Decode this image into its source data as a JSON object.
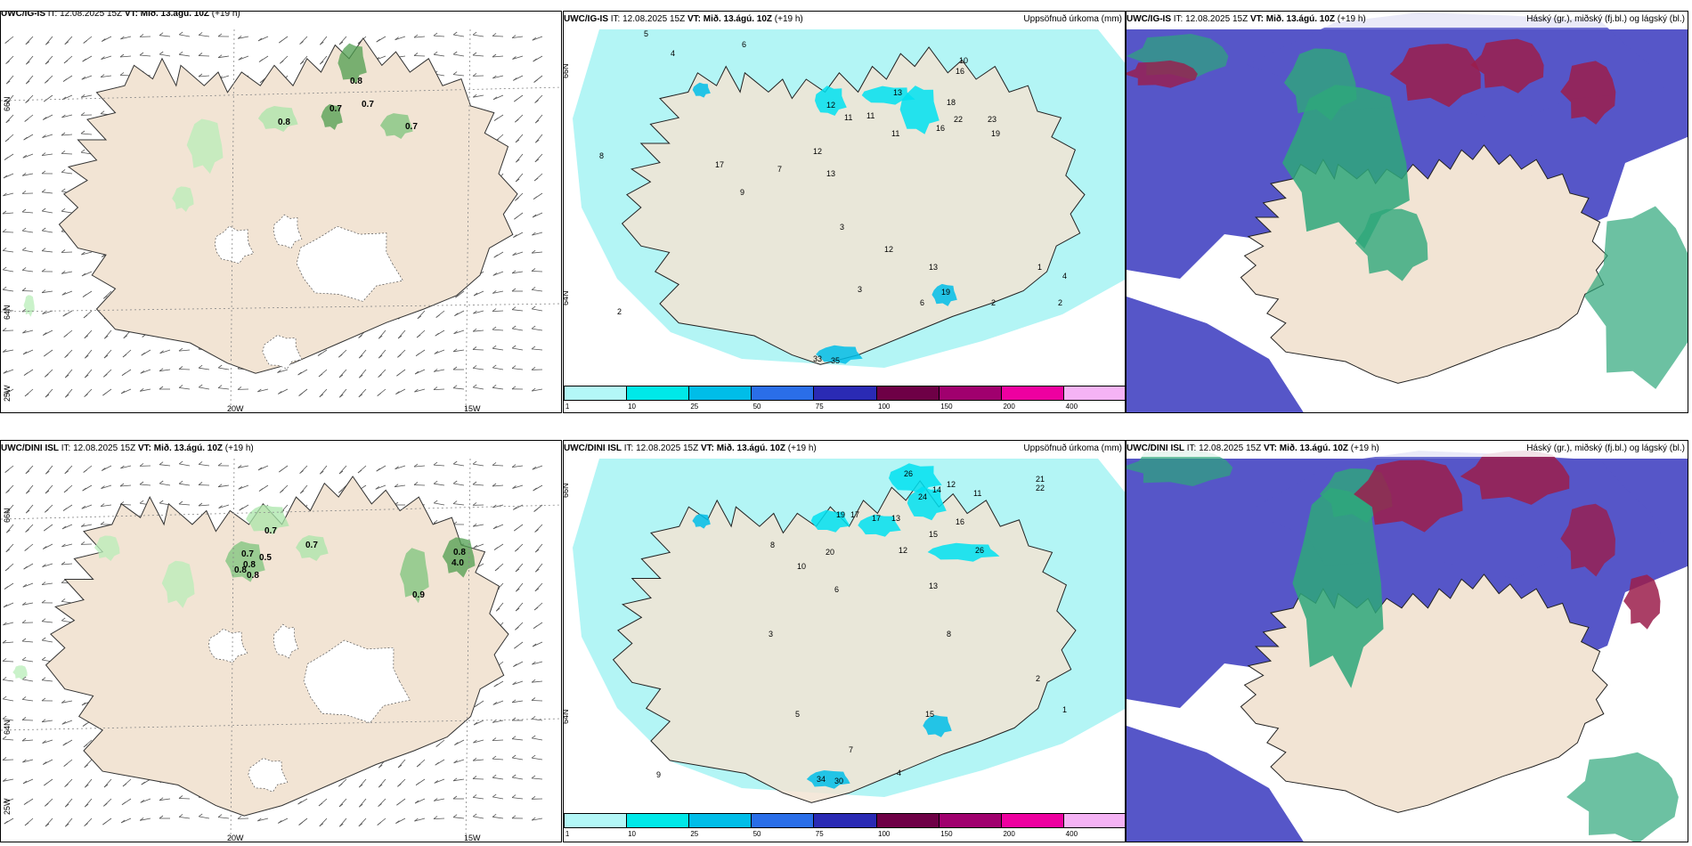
{
  "panels": {
    "top_left": {
      "source": "UWC/IG-IS",
      "it": "IT: 12.08.2025 15Z",
      "vt_label": "VT:",
      "vt": "Mið. 13.ágú. 10Z",
      "lead": "(+19 h)",
      "right": ""
    },
    "top_mid": {
      "source": "UWC/IG-IS",
      "it": "IT: 12.08.2025 15Z",
      "vt_label": "VT:",
      "vt": "Mið. 13.ágú. 10Z",
      "lead": "(+19 h)",
      "right": "Uppsöfnuð úrkoma (mm)"
    },
    "top_right": {
      "source": "UWC/IG-IS",
      "it": "IT: 12.08.2025 15Z",
      "vt_label": "VT:",
      "vt": "Mið. 13.ágú. 10Z",
      "lead": "(+19 h)",
      "right": "Háský (gr.), miðský (fj.bl.) og lágský (bl.)"
    },
    "bot_left": {
      "source": "UWC/DINI ISL",
      "it": "IT: 12.08.2025 15Z",
      "vt_label": "VT:",
      "vt": "Mið. 13.ágú. 10Z",
      "lead": "(+19 h)",
      "right": ""
    },
    "bot_mid": {
      "source": "UWC/DINI ISL",
      "it": "IT: 12.08.2025 15Z",
      "vt_label": "VT:",
      "vt": "Mið. 13.ágú. 10Z",
      "lead": "(+19 h)",
      "right": "Uppsöfnuð úrkoma (mm)"
    },
    "bot_right": {
      "source": "UWC/DINI ISL",
      "it": "IT: 12.08.2025 15Z",
      "vt_label": "VT:",
      "vt": "Mið. 13.ágú. 10Z",
      "lead": "(+19 h)",
      "right": "Háský (gr.), miðský (fj.bl.) og lágský (bl.)"
    }
  },
  "axis_labels": {
    "lat66": "66N",
    "lat64": "64N",
    "lon20": "20W",
    "lon15": "15W",
    "lon25": "25W"
  },
  "colorbar": {
    "ticks": [
      "1",
      "10",
      "25",
      "50",
      "75",
      "100",
      "150",
      "200",
      "400"
    ],
    "colors": [
      "#b3f7f7",
      "#00e8e8",
      "#00bde8",
      "#2a6ee8",
      "#2a2ab4",
      "#6e0046",
      "#a0006e",
      "#ee00a0",
      "#f5b3f5"
    ]
  },
  "colors": {
    "land": "#f2e4d4",
    "precip": "#b3f5f5",
    "cloud_low": "#5656c8",
    "cloud_mid": "#2ea77a",
    "cloud_high": "#9b1d4b"
  },
  "top_left_values": [
    "0.8",
    "0.7",
    "0.7",
    "0.8",
    "0.7"
  ],
  "bot_left_values": [
    "0.7",
    "0.7",
    "0.7",
    "0.8",
    "0.8",
    "0.8",
    "0.9",
    "0.5",
    "0.8",
    "4.0"
  ],
  "top_mid_values": [
    "5",
    "4",
    "6",
    "10",
    "12",
    "11",
    "11",
    "13",
    "18",
    "16",
    "22",
    "16",
    "19",
    "23",
    "11",
    "12",
    "17",
    "13",
    "7",
    "9",
    "3",
    "8",
    "2",
    "12",
    "13",
    "6",
    "3",
    "2",
    "4",
    "19",
    "1",
    "2",
    "33",
    "35"
  ],
  "bot_mid_values": [
    "26",
    "24",
    "14",
    "12",
    "11",
    "22",
    "21",
    "19",
    "17",
    "17",
    "13",
    "15",
    "16",
    "20",
    "26",
    "8",
    "10",
    "13",
    "12",
    "6",
    "3",
    "2",
    "1",
    "5",
    "15",
    "34",
    "30",
    "7",
    "4",
    "9",
    "8"
  ]
}
